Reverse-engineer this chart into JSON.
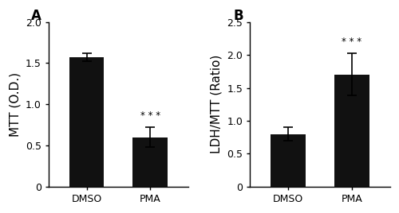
{
  "panel_A": {
    "label": "A",
    "categories": [
      "DMSO",
      "PMA"
    ],
    "values": [
      1.57,
      0.6
    ],
    "errors": [
      0.05,
      0.12
    ],
    "ylabel": "MTT (O.D.)",
    "ylim": [
      0,
      2.0
    ],
    "yticks": [
      0,
      0.5,
      1.0,
      1.5,
      2.0
    ],
    "yticklabels": [
      "0",
      "0.5",
      "1.0",
      "1.5",
      "2.0"
    ],
    "significance": [
      false,
      true
    ],
    "sig_text": "* * *"
  },
  "panel_B": {
    "label": "B",
    "categories": [
      "DMSO",
      "PMA"
    ],
    "values": [
      0.8,
      1.7
    ],
    "errors": [
      0.1,
      0.32
    ],
    "ylabel": "LDH/MTT (Ratio)",
    "ylim": [
      0,
      2.5
    ],
    "yticks": [
      0,
      0.5,
      1.0,
      1.5,
      2.0,
      2.5
    ],
    "yticklabels": [
      "0",
      "0.5",
      "1.0",
      "1.5",
      "2.0",
      "2.5"
    ],
    "significance": [
      false,
      true
    ],
    "sig_text": "* * *"
  },
  "bar_color": "#111111",
  "bar_width": 0.55,
  "capsize": 4,
  "background_color": "#ffffff",
  "label_fontsize": 11,
  "tick_fontsize": 9,
  "panel_label_fontsize": 12
}
